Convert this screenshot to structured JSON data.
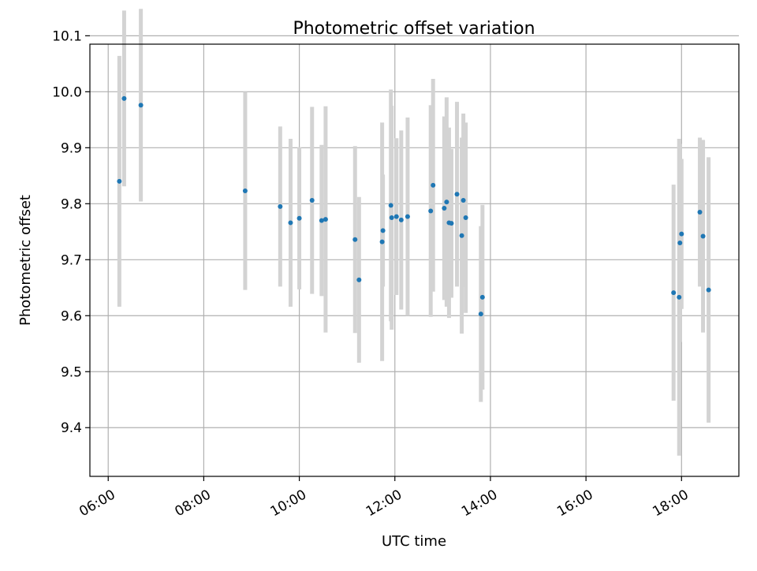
{
  "chart_data": {
    "type": "scatter",
    "title": "Photometric offset variation",
    "xlabel": "UTC time",
    "ylabel": "Photometric offset",
    "x_axis_type": "time",
    "xlim": [
      "05:37",
      "19:12"
    ],
    "ylim": [
      9.313,
      10.085
    ],
    "x_ticks": [
      "06:00",
      "08:00",
      "10:00",
      "12:00",
      "14:00",
      "16:00",
      "18:00"
    ],
    "y_ticks": [
      "9.4",
      "9.5",
      "9.6",
      "9.7",
      "9.8",
      "9.9",
      "10.0",
      "10.1"
    ],
    "grid": true,
    "errorbar_color": "#d3d3d3",
    "marker_color": "#1f77b4",
    "points": [
      {
        "t": "06:14",
        "y": 9.84,
        "yerr": 0.224
      },
      {
        "t": "06:20",
        "y": 9.988,
        "yerr": 0.157
      },
      {
        "t": "06:41",
        "y": 9.976,
        "yerr": 0.172
      },
      {
        "t": "08:52",
        "y": 9.823,
        "yerr": 0.177
      },
      {
        "t": "09:36",
        "y": 9.795,
        "yerr": 0.143
      },
      {
        "t": "09:49",
        "y": 9.766,
        "yerr": 0.15
      },
      {
        "t": "10:00",
        "y": 9.774,
        "yerr": 0.127
      },
      {
        "t": "10:16",
        "y": 9.806,
        "yerr": 0.167
      },
      {
        "t": "10:28",
        "y": 9.77,
        "yerr": 0.135
      },
      {
        "t": "10:33",
        "y": 9.772,
        "yerr": 0.202
      },
      {
        "t": "11:10",
        "y": 9.736,
        "yerr": 0.167
      },
      {
        "t": "11:15",
        "y": 9.664,
        "yerr": 0.148
      },
      {
        "t": "11:44",
        "y": 9.732,
        "yerr": 0.213
      },
      {
        "t": "11:45",
        "y": 9.752,
        "yerr": 0.1
      },
      {
        "t": "11:55",
        "y": 9.797,
        "yerr": 0.207
      },
      {
        "t": "11:56",
        "y": 9.775,
        "yerr": 0.2
      },
      {
        "t": "12:02",
        "y": 9.777,
        "yerr": 0.14
      },
      {
        "t": "12:08",
        "y": 9.771,
        "yerr": 0.16
      },
      {
        "t": "12:16",
        "y": 9.777,
        "yerr": 0.177
      },
      {
        "t": "12:45",
        "y": 9.787,
        "yerr": 0.189
      },
      {
        "t": "12:48",
        "y": 9.833,
        "yerr": 0.19
      },
      {
        "t": "13:02",
        "y": 9.792,
        "yerr": 0.164
      },
      {
        "t": "13:05",
        "y": 9.803,
        "yerr": 0.187
      },
      {
        "t": "13:08",
        "y": 9.766,
        "yerr": 0.17
      },
      {
        "t": "13:11",
        "y": 9.765,
        "yerr": 0.133
      },
      {
        "t": "13:18",
        "y": 9.817,
        "yerr": 0.165
      },
      {
        "t": "13:24",
        "y": 9.743,
        "yerr": 0.175
      },
      {
        "t": "13:26",
        "y": 9.806,
        "yerr": 0.155
      },
      {
        "t": "13:29",
        "y": 9.775,
        "yerr": 0.17
      },
      {
        "t": "13:48",
        "y": 9.603,
        "yerr": 0.157
      },
      {
        "t": "13:50",
        "y": 9.633,
        "yerr": 0.165
      },
      {
        "t": "17:50",
        "y": 9.641,
        "yerr": 0.193
      },
      {
        "t": "17:57",
        "y": 9.633,
        "yerr": 0.283
      },
      {
        "t": "17:58",
        "y": 9.73,
        "yerr": 0.177
      },
      {
        "t": "18:00",
        "y": 9.746,
        "yerr": 0.134
      },
      {
        "t": "18:23",
        "y": 9.785,
        "yerr": 0.133
      },
      {
        "t": "18:27",
        "y": 9.742,
        "yerr": 0.172
      },
      {
        "t": "18:34",
        "y": 9.646,
        "yerr": 0.237
      }
    ]
  }
}
